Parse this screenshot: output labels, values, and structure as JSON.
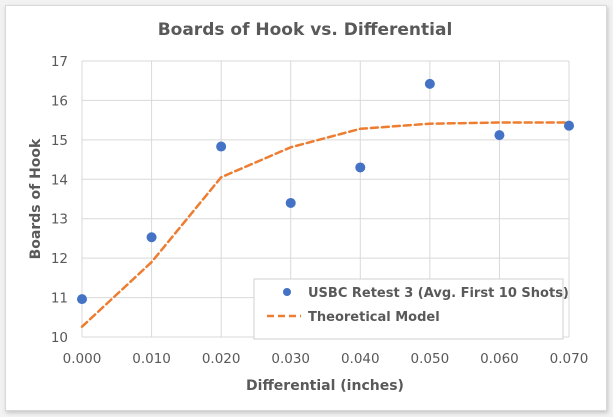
{
  "chart_data": {
    "type": "scatter",
    "title": "Boards of Hook vs. Differential",
    "xlabel": "Differential (inches)",
    "ylabel": "Boards of Hook",
    "xlim": [
      0.0,
      0.07
    ],
    "ylim": [
      10,
      17
    ],
    "x_ticks": [
      "0.000",
      "0.010",
      "0.020",
      "0.030",
      "0.040",
      "0.050",
      "0.060",
      "0.070"
    ],
    "y_ticks": [
      "10",
      "11",
      "12",
      "13",
      "14",
      "15",
      "16",
      "17"
    ],
    "grid": true,
    "legend_position": "lower right (inside)",
    "series": [
      {
        "name": "USBC Retest 3 (Avg. First 10 Shots)",
        "style": "markers",
        "color": "#4472C4",
        "x": [
          0.0,
          0.01,
          0.02,
          0.03,
          0.04,
          0.05,
          0.06,
          0.07
        ],
        "y": [
          10.96,
          12.53,
          14.83,
          13.4,
          14.3,
          16.42,
          15.12,
          15.36
        ]
      },
      {
        "name": "Theoretical Model",
        "style": "dashed-line",
        "color": "#ED7D31",
        "x": [
          0.0,
          0.01,
          0.02,
          0.03,
          0.04,
          0.05,
          0.06,
          0.07
        ],
        "y": [
          10.26,
          11.9,
          14.05,
          14.81,
          15.28,
          15.41,
          15.44,
          15.44
        ]
      }
    ]
  }
}
